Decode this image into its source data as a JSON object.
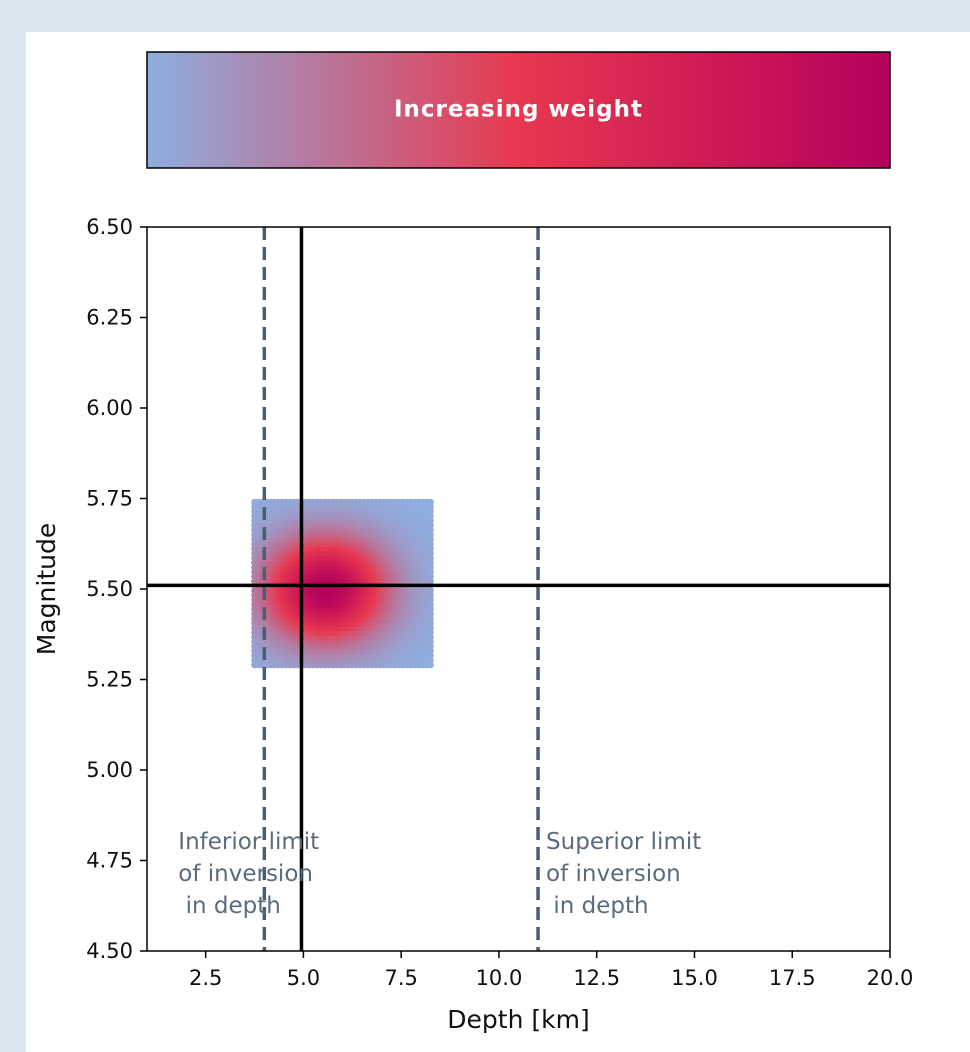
{
  "colors": {
    "page_background": "#dce6f0",
    "panel_background": "#ffffff",
    "low_weight": "#8eaee0",
    "mid_weight": "#e8384f",
    "high_weight": "#b5005c",
    "limit_line": "#4a5e72",
    "annotation_text": "#5a6b7d",
    "best_line": "#000000"
  },
  "colorbar": {
    "label": "Increasing weight"
  },
  "chart_data": {
    "type": "heatmap",
    "title": "",
    "xlabel": "Depth [km]",
    "ylabel": "Magnitude",
    "xlim": [
      1.0,
      20.0
    ],
    "ylim": [
      4.5,
      6.5
    ],
    "x_ticks": [
      2.5,
      5.0,
      7.5,
      10.0,
      12.5,
      15.0,
      17.5,
      20.0
    ],
    "x_tick_labels": [
      "2.5",
      "5.0",
      "7.5",
      "10.0",
      "12.5",
      "15.0",
      "17.5",
      "20.0"
    ],
    "y_ticks": [
      4.5,
      4.75,
      5.0,
      5.25,
      5.5,
      5.75,
      6.0,
      6.25,
      6.5
    ],
    "y_tick_labels": [
      "4.50",
      "4.75",
      "5.00",
      "5.25",
      "5.50",
      "5.75",
      "6.00",
      "6.25",
      "6.50"
    ],
    "grid": false,
    "weight_field": {
      "x_range": [
        3.75,
        8.25
      ],
      "y_range": [
        5.29,
        5.74
      ],
      "peak": {
        "x": 5.6,
        "y": 5.5
      },
      "spread": {
        "x": 1.5,
        "y": 0.14
      }
    },
    "best_solution": {
      "depth": 4.95,
      "magnitude": 5.51
    },
    "inversion_limits": [
      {
        "depth": 4.0,
        "label_lines": [
          "Inferior limit",
          "of inversion",
          " in depth"
        ]
      },
      {
        "depth": 11.0,
        "label_lines": [
          "Superior limit",
          "of inversion",
          " in depth"
        ]
      }
    ]
  }
}
